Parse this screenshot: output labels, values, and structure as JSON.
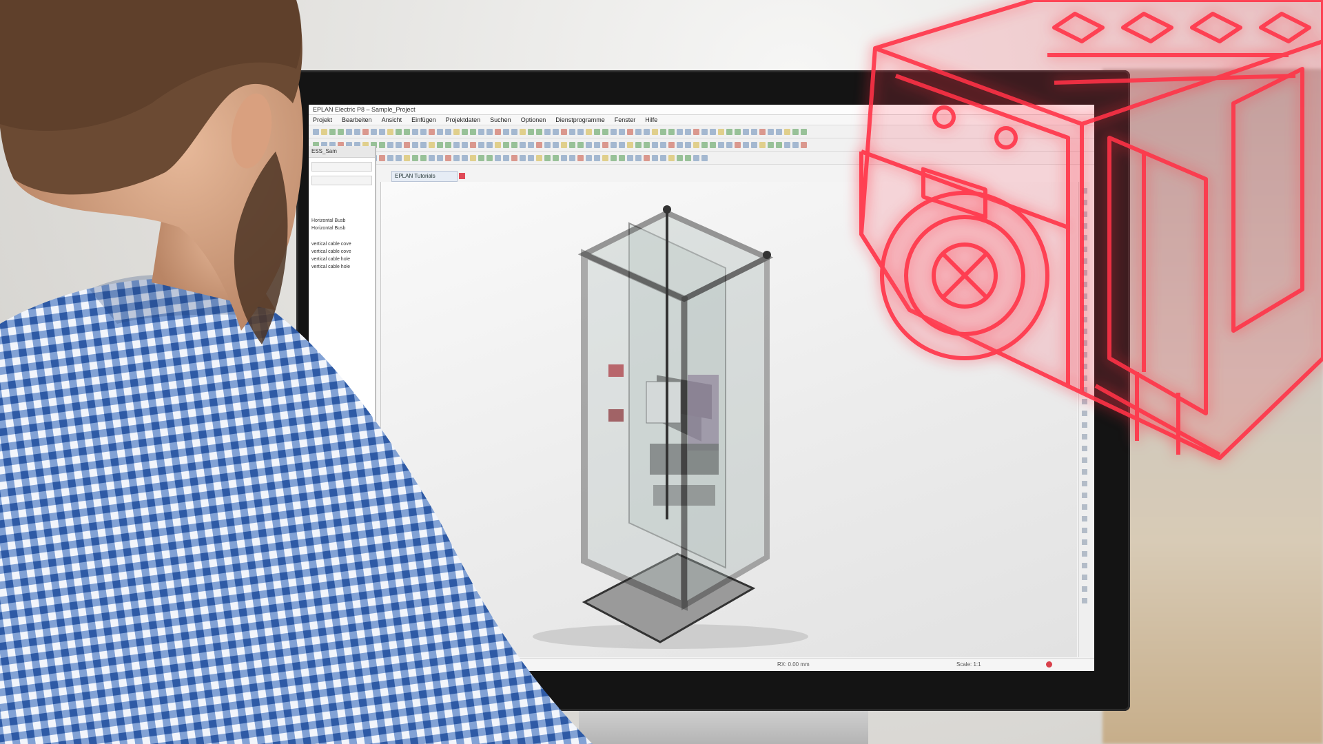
{
  "window": {
    "title": "EPLAN Electric P8 – Sample_Project"
  },
  "menu": {
    "items": [
      "Projekt",
      "Bearbeiten",
      "Ansicht",
      "Einfügen",
      "Projektdaten",
      "Suchen",
      "Optionen",
      "Dienstprogramme",
      "Fenster",
      "Hilfe"
    ]
  },
  "side_panel": {
    "tab_label": "ESS_Sam",
    "tree_items": [
      "Horizontal Busb",
      "Horizontal Busb",
      "vertical cable cove",
      "vertical cable cove",
      "vertical cable hole",
      "vertical cable hole"
    ]
  },
  "document_tab": {
    "label": "EPLAN Tutorials"
  },
  "status_bar": {
    "coordinates": "RX: 0.00 mm",
    "scale": "Scale: 1:1"
  },
  "colors": {
    "logo_red": "#ff3347",
    "shirt_blue": "#3f6fb8",
    "cabinet_frame": "#2b2b2b"
  },
  "icons": {
    "toolbar": "toolbar-icon",
    "close": "close-icon",
    "logo": "3d-cabinet-logo"
  }
}
